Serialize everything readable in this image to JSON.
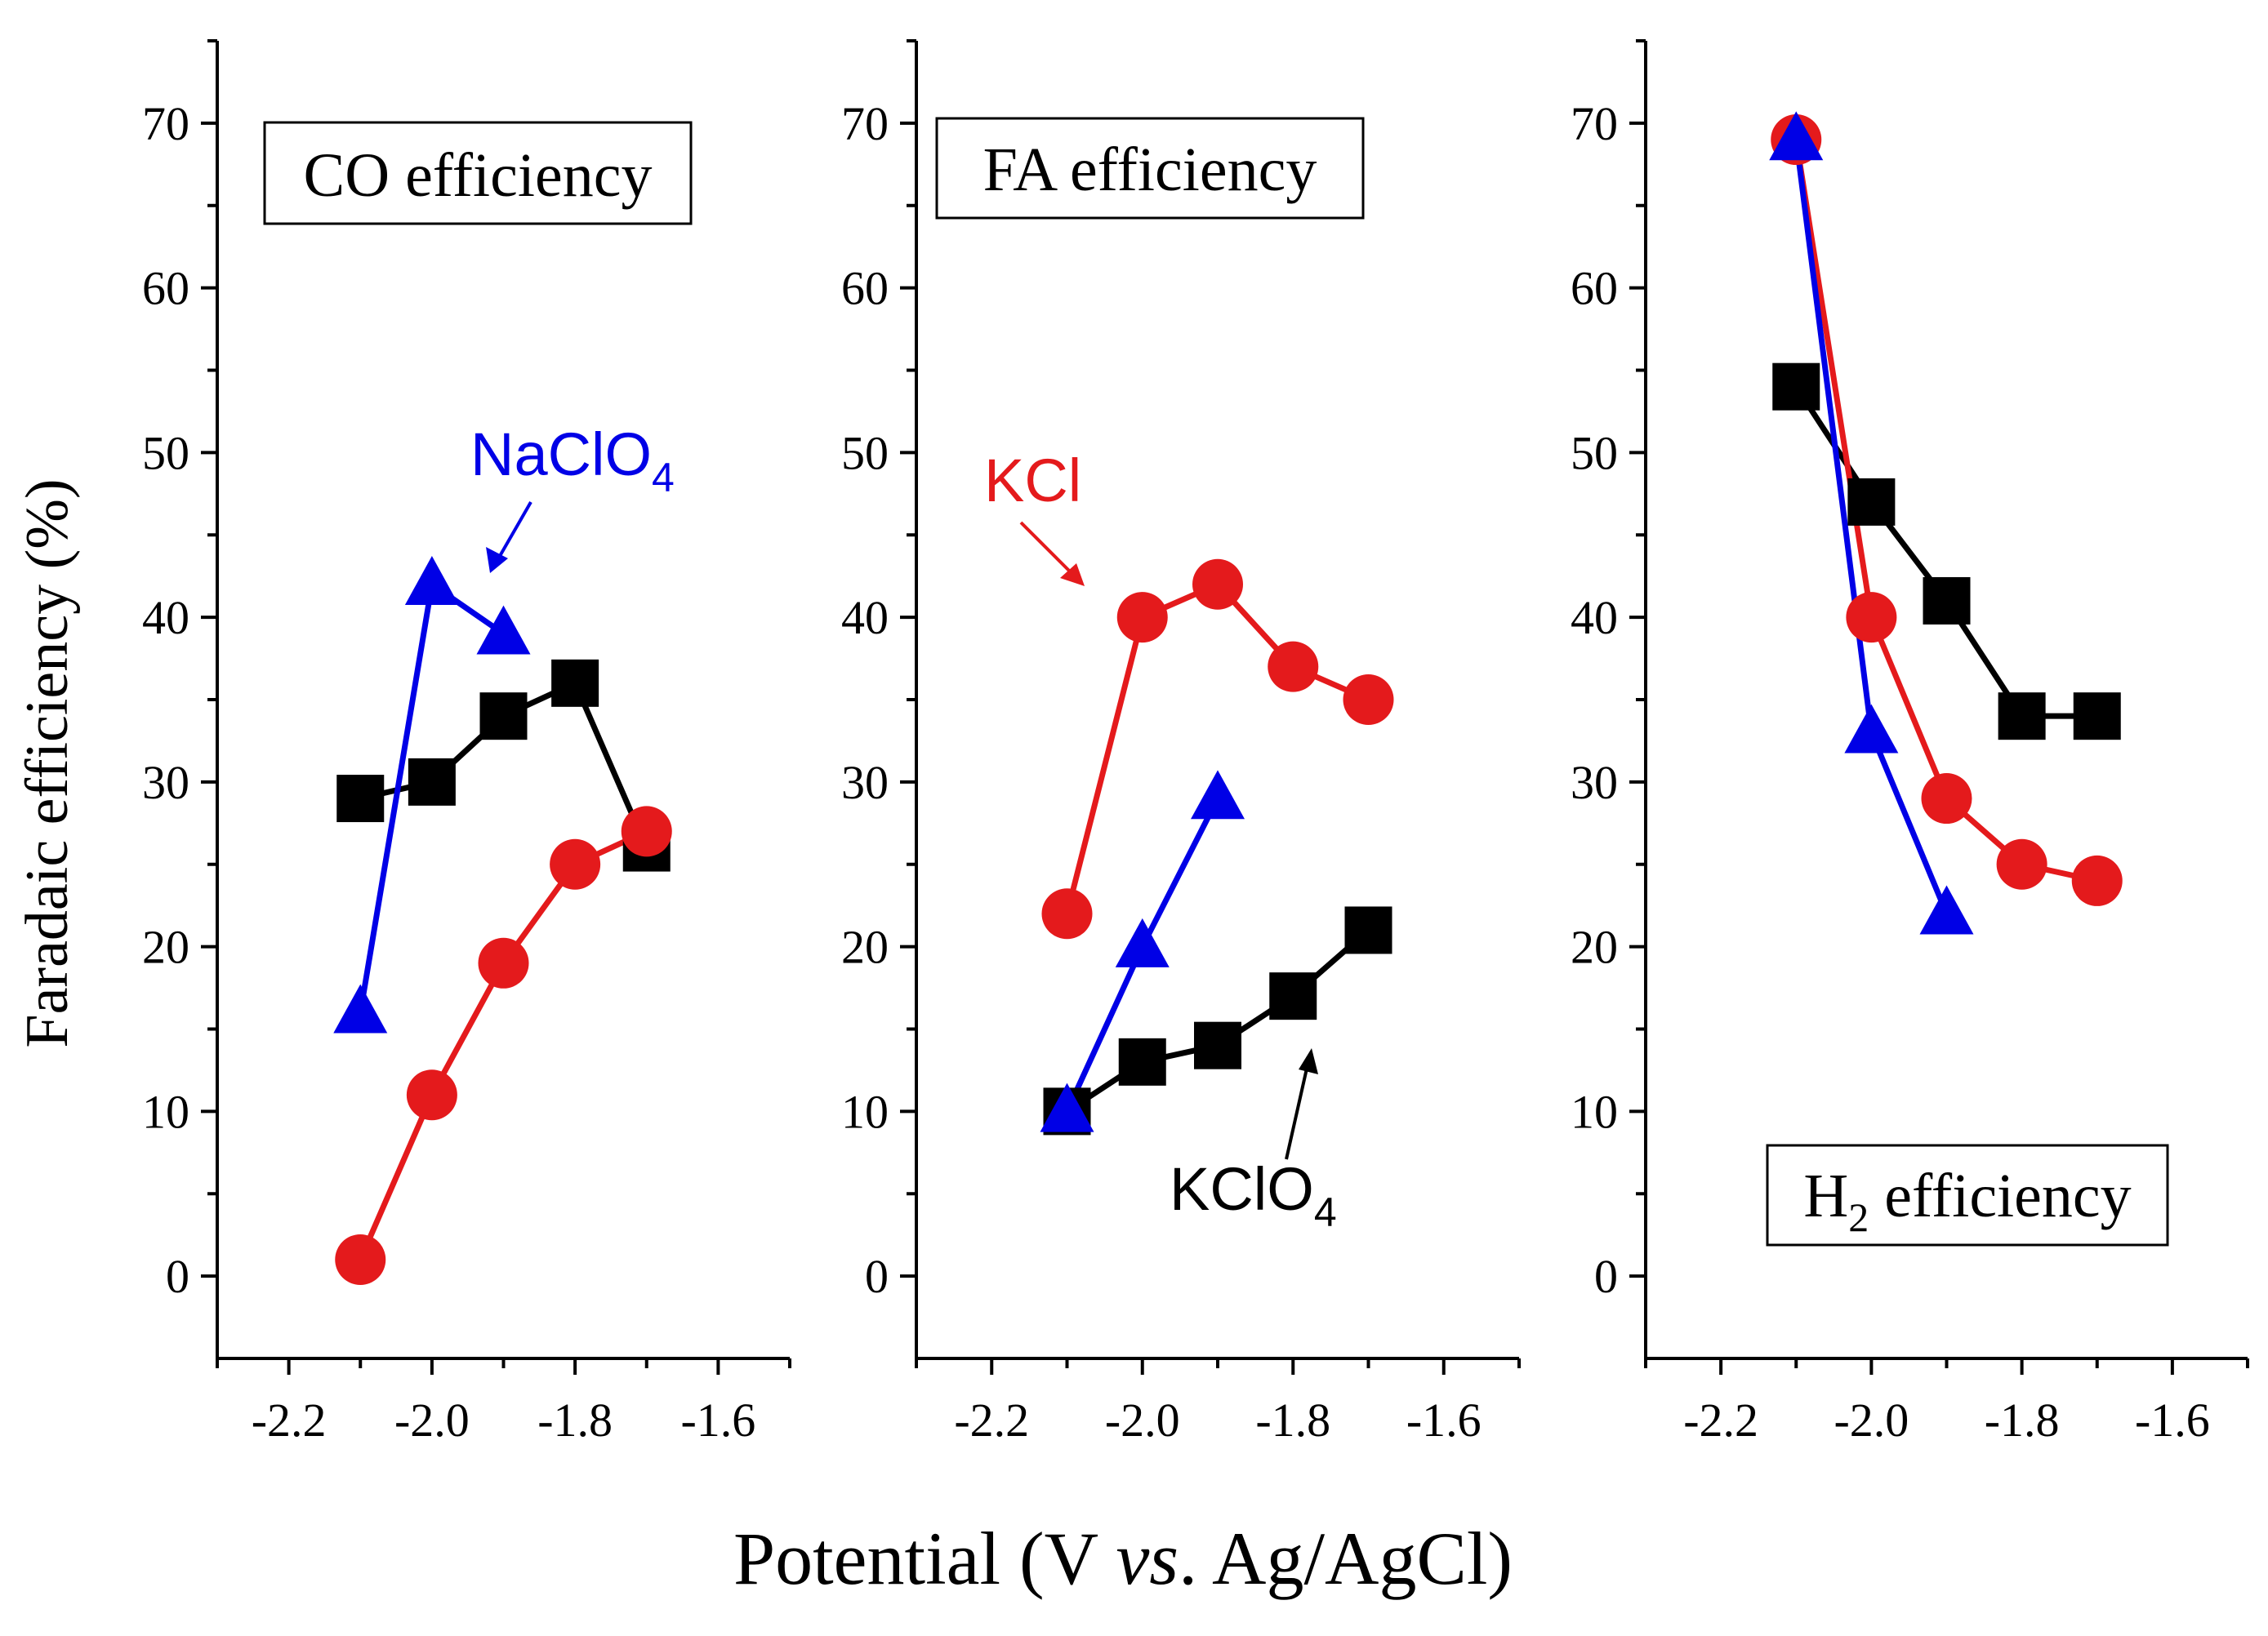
{
  "ylabel": "Faradaic efficiency (%)",
  "xlabel_parts": [
    "Potential (V ",
    "vs",
    ". Ag/AgCl)"
  ],
  "colors": {
    "black": "#000000",
    "red": "#e41a1c",
    "blue": "#0000e6"
  },
  "chart_data": [
    {
      "type": "line",
      "title": "CO efficiency",
      "xlim": [
        -2.3,
        -1.5
      ],
      "ylim": [
        -5,
        75
      ],
      "xticks": [
        -2.2,
        -2.0,
        -1.8,
        -1.6
      ],
      "xtick_labels": [
        "-2.2",
        "-2.0",
        "-1.8",
        "-1.6"
      ],
      "yticks": [
        0,
        10,
        20,
        30,
        40,
        50,
        60,
        70
      ],
      "ytick_labels": [
        "0",
        "10",
        "20",
        "30",
        "40",
        "50",
        "60",
        "70"
      ],
      "series": [
        {
          "name": "KClO4",
          "marker": "square",
          "color": "black",
          "x": [
            -2.1,
            -2.0,
            -1.9,
            -1.8,
            -1.7
          ],
          "y": [
            29,
            30,
            34,
            36,
            26
          ]
        },
        {
          "name": "KCl",
          "marker": "circle",
          "color": "red",
          "x": [
            -2.1,
            -2.0,
            -1.9,
            -1.8,
            -1.7
          ],
          "y": [
            1,
            11,
            19,
            25,
            27
          ]
        },
        {
          "name": "NaClO4",
          "marker": "triangle",
          "color": "blue",
          "x": [
            -2.1,
            -2.0,
            -1.9
          ],
          "y": [
            16,
            42,
            39
          ]
        }
      ],
      "annotation": {
        "text": "NaClO",
        "sub": "4",
        "color": "blue"
      }
    },
    {
      "type": "line",
      "title": "FA efficiency",
      "xlim": [
        -2.3,
        -1.5
      ],
      "ylim": [
        -5,
        75
      ],
      "xticks": [
        -2.2,
        -2.0,
        -1.8,
        -1.6
      ],
      "xtick_labels": [
        "-2.2",
        "-2.0",
        "-1.8",
        "-1.6"
      ],
      "yticks": [
        0,
        10,
        20,
        30,
        40,
        50,
        60,
        70
      ],
      "ytick_labels": [
        "0",
        "10",
        "20",
        "30",
        "40",
        "50",
        "60",
        "70"
      ],
      "series": [
        {
          "name": "KClO4",
          "marker": "square",
          "color": "black",
          "x": [
            -2.1,
            -2.0,
            -1.9,
            -1.8,
            -1.7
          ],
          "y": [
            10,
            13,
            14,
            17,
            21
          ]
        },
        {
          "name": "KCl",
          "marker": "circle",
          "color": "red",
          "x": [
            -2.1,
            -2.0,
            -1.9,
            -1.8,
            -1.7
          ],
          "y": [
            22,
            40,
            42,
            37,
            35
          ]
        },
        {
          "name": "NaClO4",
          "marker": "triangle",
          "color": "blue",
          "x": [
            -2.1,
            -2.0,
            -1.9
          ],
          "y": [
            10,
            20,
            29
          ]
        }
      ],
      "annotations": [
        {
          "text": "KCl",
          "sub": "",
          "color": "red"
        },
        {
          "text": "KClO",
          "sub": "4",
          "color": "black"
        }
      ]
    },
    {
      "type": "line",
      "title": "H",
      "title_sub": "2",
      "title_rest": " efficiency",
      "xlim": [
        -2.3,
        -1.5
      ],
      "ylim": [
        -5,
        75
      ],
      "xticks": [
        -2.2,
        -2.0,
        -1.8,
        -1.6
      ],
      "xtick_labels": [
        "-2.2",
        "-2.0",
        "-1.8",
        "-1.6"
      ],
      "yticks": [
        0,
        10,
        20,
        30,
        40,
        50,
        60,
        70
      ],
      "ytick_labels": [
        "0",
        "10",
        "20",
        "30",
        "40",
        "50",
        "60",
        "70"
      ],
      "series": [
        {
          "name": "KClO4",
          "marker": "square",
          "color": "black",
          "x": [
            -2.1,
            -2.0,
            -1.9,
            -1.8,
            -1.7
          ],
          "y": [
            54,
            47,
            41,
            34,
            34
          ]
        },
        {
          "name": "KCl",
          "marker": "circle",
          "color": "red",
          "x": [
            -2.1,
            -2.0,
            -1.9,
            -1.8,
            -1.7
          ],
          "y": [
            69,
            40,
            29,
            25,
            24
          ]
        },
        {
          "name": "NaClO4",
          "marker": "triangle",
          "color": "blue",
          "x": [
            -2.1,
            -2.0,
            -1.9
          ],
          "y": [
            69,
            33,
            22
          ]
        }
      ]
    }
  ]
}
